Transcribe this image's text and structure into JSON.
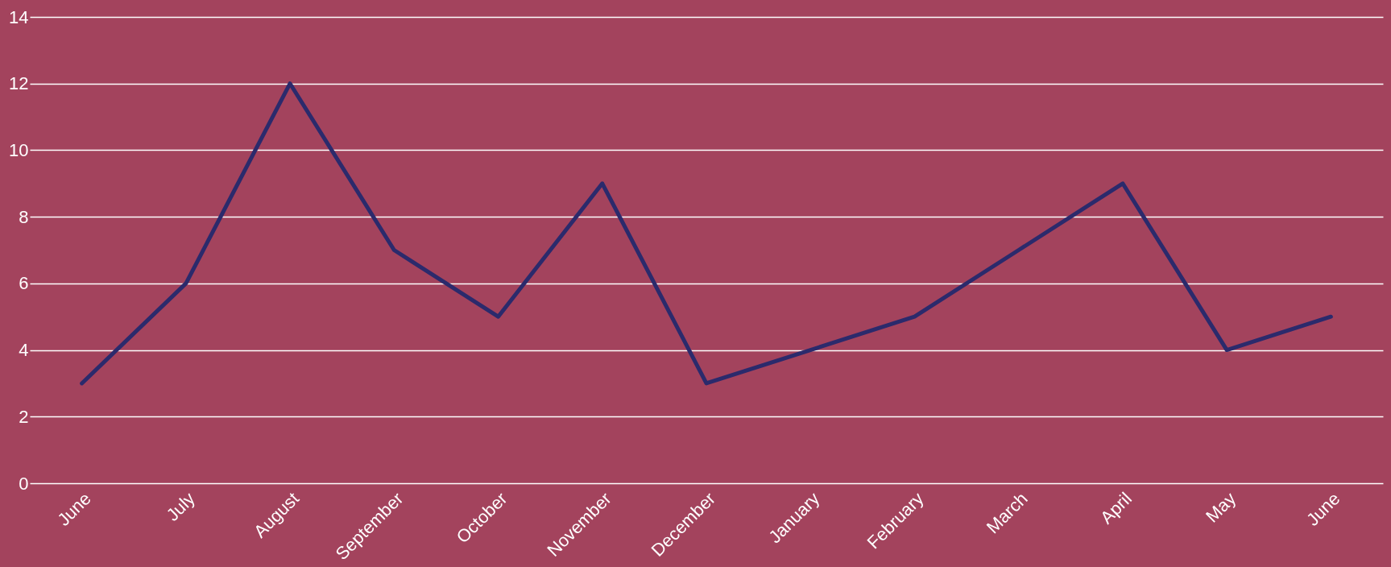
{
  "chart_data": {
    "type": "line",
    "categories": [
      "June",
      "July",
      "August",
      "September",
      "October",
      "November",
      "December",
      "January",
      "February",
      "March",
      "April",
      "May",
      "June"
    ],
    "series": [
      {
        "color": "#2b2a6c",
        "values": [
          3,
          6,
          12,
          7,
          5,
          9,
          3,
          4,
          5,
          7,
          9,
          4,
          5
        ]
      }
    ],
    "ylim": [
      0,
      14
    ],
    "yticks": [
      0,
      2,
      4,
      6,
      8,
      10,
      12,
      14
    ],
    "grid": "y",
    "marker": "none",
    "line_style": "solid"
  }
}
